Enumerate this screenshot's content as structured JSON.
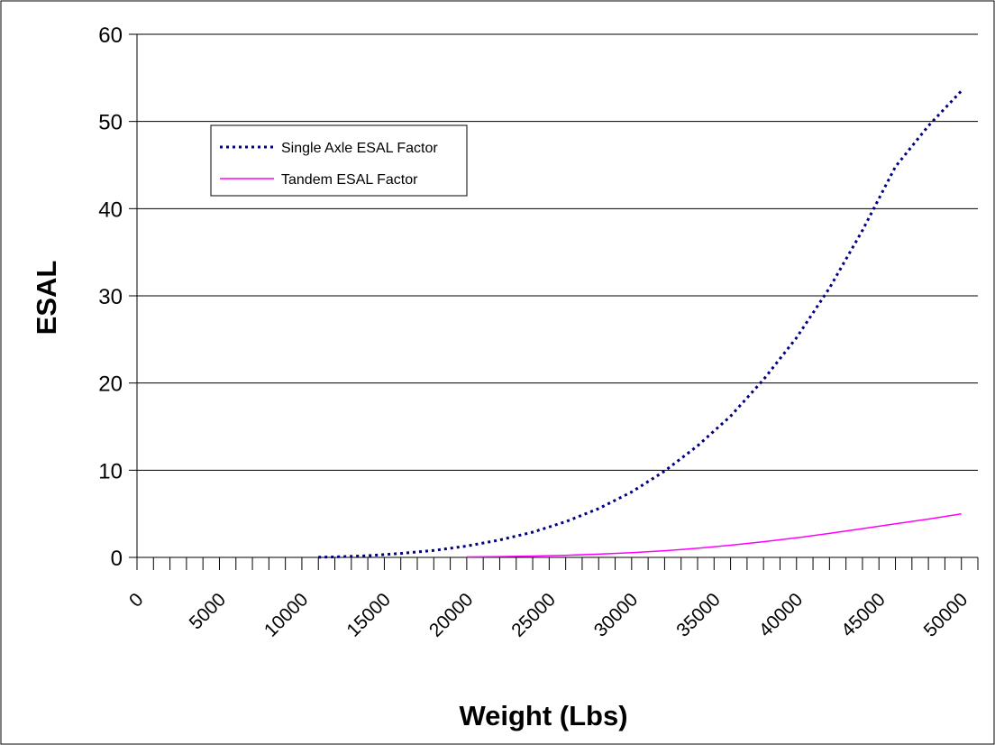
{
  "chart_data": {
    "type": "line",
    "title": "",
    "xlabel": "Weight (Lbs)",
    "ylabel": "ESAL",
    "x": [
      0,
      2000,
      4000,
      6000,
      8000,
      10000,
      12000,
      14000,
      16000,
      18000,
      20000,
      22000,
      24000,
      26000,
      28000,
      30000,
      32000,
      34000,
      36000,
      38000,
      40000,
      42000,
      44000,
      46000,
      48000,
      50000
    ],
    "x_tick_labels": [
      "0",
      "5000",
      "10000",
      "15000",
      "20000",
      "25000",
      "30000",
      "35000",
      "40000",
      "45000",
      "50000"
    ],
    "x_tick_values": [
      0,
      5000,
      10000,
      15000,
      20000,
      25000,
      30000,
      35000,
      40000,
      45000,
      50000
    ],
    "xlim": [
      0,
      51000
    ],
    "ylim": [
      0,
      60
    ],
    "y_ticks": [
      0,
      10,
      20,
      30,
      40,
      50,
      60
    ],
    "grid": "horizontal",
    "legend_position": "top-left",
    "series": [
      {
        "name": "Single Axle ESAL Factor",
        "style": "dotted",
        "color": "#000080",
        "x": [
          11000,
          12000,
          14000,
          16000,
          18000,
          20000,
          22000,
          24000,
          26000,
          28000,
          30000,
          32000,
          34000,
          36000,
          38000,
          40000,
          42000,
          44000,
          46000,
          48000,
          50000
        ],
        "values": [
          0.02,
          0.05,
          0.2,
          0.45,
          0.8,
          1.3,
          2.0,
          2.9,
          4.1,
          5.6,
          7.5,
          9.9,
          12.8,
          16.2,
          20.4,
          25.2,
          30.9,
          37.5,
          44.8,
          49.5,
          53.5
        ]
      },
      {
        "name": "Tandem ESAL Factor",
        "style": "solid",
        "color": "#ff00ff",
        "x": [
          20000,
          22000,
          24000,
          26000,
          28000,
          30000,
          32000,
          34000,
          36000,
          38000,
          40000,
          42000,
          44000,
          46000,
          48000,
          50000
        ],
        "values": [
          0.05,
          0.09,
          0.15,
          0.24,
          0.37,
          0.55,
          0.77,
          1.05,
          1.4,
          1.8,
          2.25,
          2.75,
          3.3,
          3.85,
          4.4,
          5.0
        ]
      }
    ]
  }
}
